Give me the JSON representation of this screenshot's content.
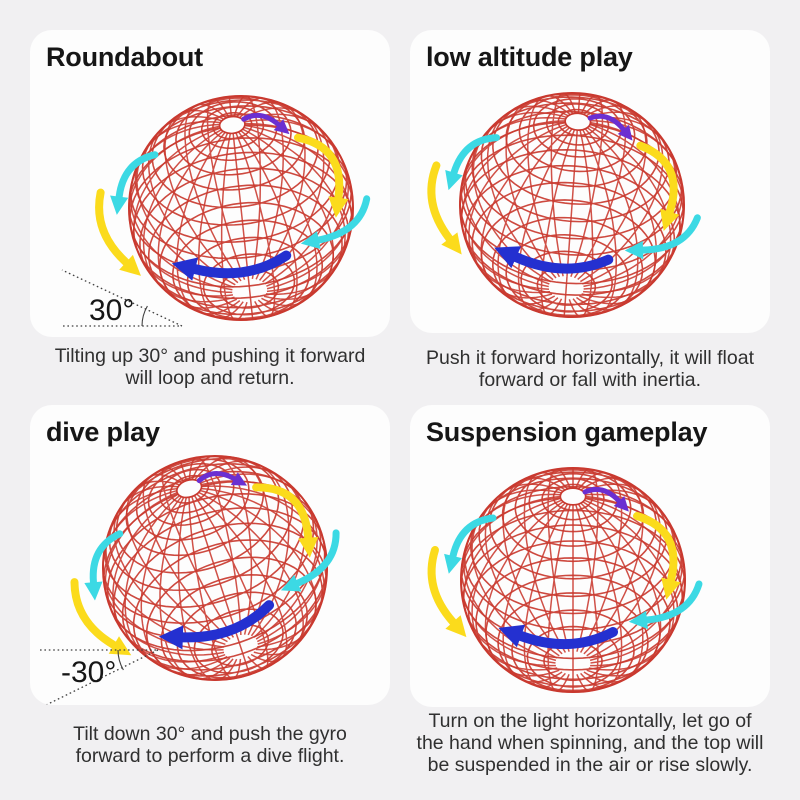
{
  "colors": {
    "page_bg": "#f1f0f2",
    "card_bg": "#fdfdfd",
    "wire": "#c9392f",
    "arrow_yellow": "#fbdb1c",
    "arrow_cyan": "#3cd9e4",
    "arrow_blue": "#2430d0",
    "arrow_purple": "#6b2fd1",
    "title_color": "#161616",
    "caption_color": "#303030",
    "angle_line_color": "#3f3f3f"
  },
  "cards": [
    {
      "id": "roundabout",
      "title": "Roundabout",
      "angle_label": "30°",
      "caption_lines": [
        "Tilting up 30° and pushing it forward",
        "will loop and return."
      ]
    },
    {
      "id": "low-altitude",
      "title": "low altitude play",
      "caption_lines": [
        "Push it forward horizontally, it will float",
        "forward or fall with inertia."
      ]
    },
    {
      "id": "dive",
      "title": "dive play",
      "angle_label": "-30°",
      "caption_lines": [
        "Tilt down 30° and push the gyro",
        "forward to perform a dive flight."
      ]
    },
    {
      "id": "suspension",
      "title": "Suspension gameplay",
      "caption_lines": [
        "Turn on the light horizontally, let go of",
        "the hand when spinning, and the top will",
        "be suspended in the air or rise slowly."
      ]
    }
  ]
}
